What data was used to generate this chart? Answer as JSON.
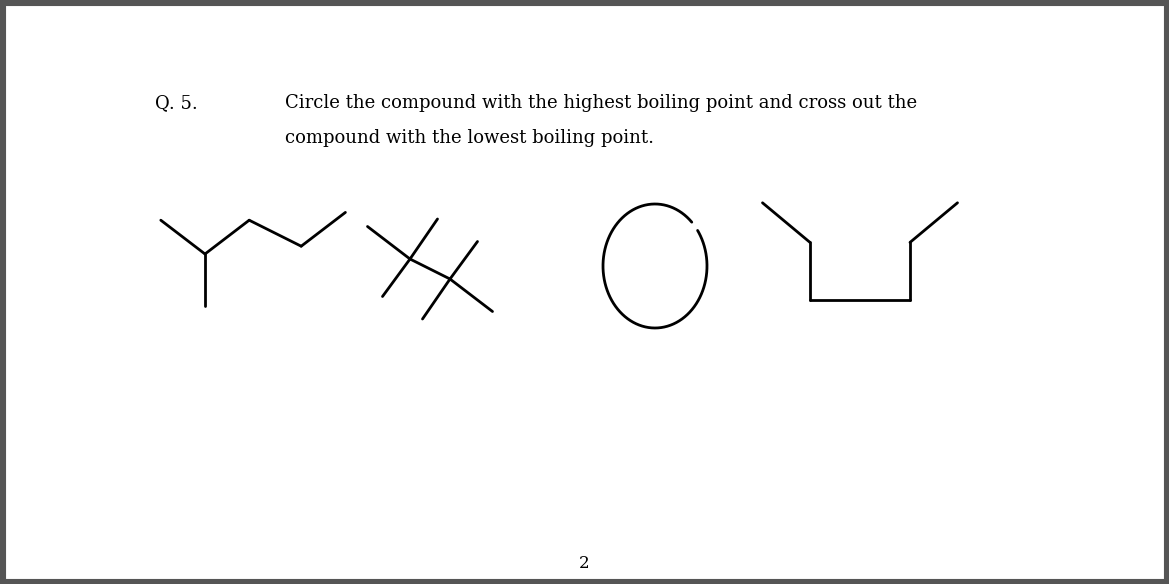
{
  "title_q": "Q. 5.",
  "title_text": "Circle the compound with the highest boiling point and cross out the\ncompound with the lowest boiling point.",
  "page_number": "2",
  "background_color": "#ffffff",
  "line_color": "#000000",
  "line_width": 2.0,
  "border_color": "#555555",
  "border_width": 8
}
